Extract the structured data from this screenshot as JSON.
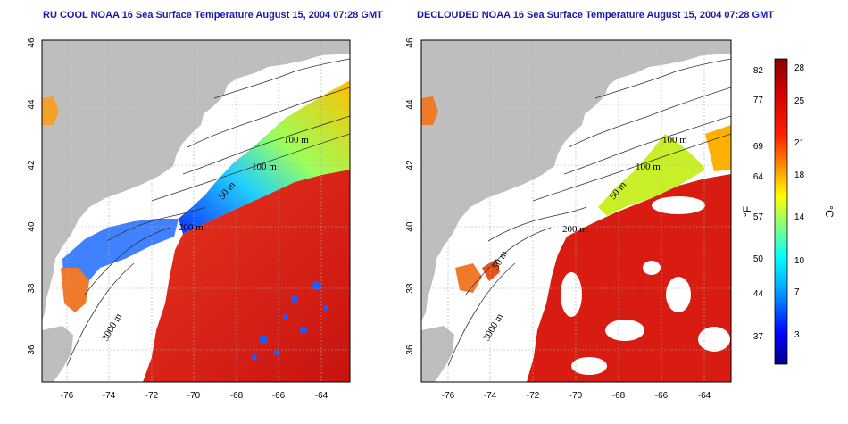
{
  "panels": [
    {
      "title": "RU COOL NOAA 16 Sea Surface Temperature August 15, 2004 07:28 GMT",
      "contour_labels": [
        "100 m",
        "100 m",
        "50 m",
        "200 m",
        "3000 m"
      ]
    },
    {
      "title": "DECLOUDED NOAA 16 Sea Surface Temperature August 15, 2004 07:28 GMT",
      "contour_labels": [
        "100 m",
        "100 m",
        "50 m",
        "200 m",
        "50 m",
        "3000 m"
      ]
    }
  ],
  "axes": {
    "lon_ticks": [
      "-76",
      "-74",
      "-72",
      "-70",
      "-68",
      "-66",
      "-64"
    ],
    "lat_ticks": [
      "46",
      "44",
      "42",
      "40",
      "38",
      "36"
    ]
  },
  "colorbar": {
    "fahrenheit_label": "°F",
    "celsius_label": "°C",
    "fahrenheit_ticks": [
      "82",
      "77",
      "69",
      "64",
      "57",
      "50",
      "44",
      "37"
    ],
    "celsius_ticks": [
      "28",
      "25",
      "21",
      "18",
      "14",
      "10",
      "7",
      "3"
    ],
    "colors": [
      "#00008b",
      "#0000ff",
      "#00aaff",
      "#00ffff",
      "#7fff7f",
      "#ffff00",
      "#ff8c00",
      "#ff2000",
      "#cc0000",
      "#8b0000"
    ]
  },
  "colors": {
    "land": "#bebebe",
    "title": "#1a1aa8",
    "warm_water": "#e3261b",
    "cloud": "#ffffff"
  }
}
